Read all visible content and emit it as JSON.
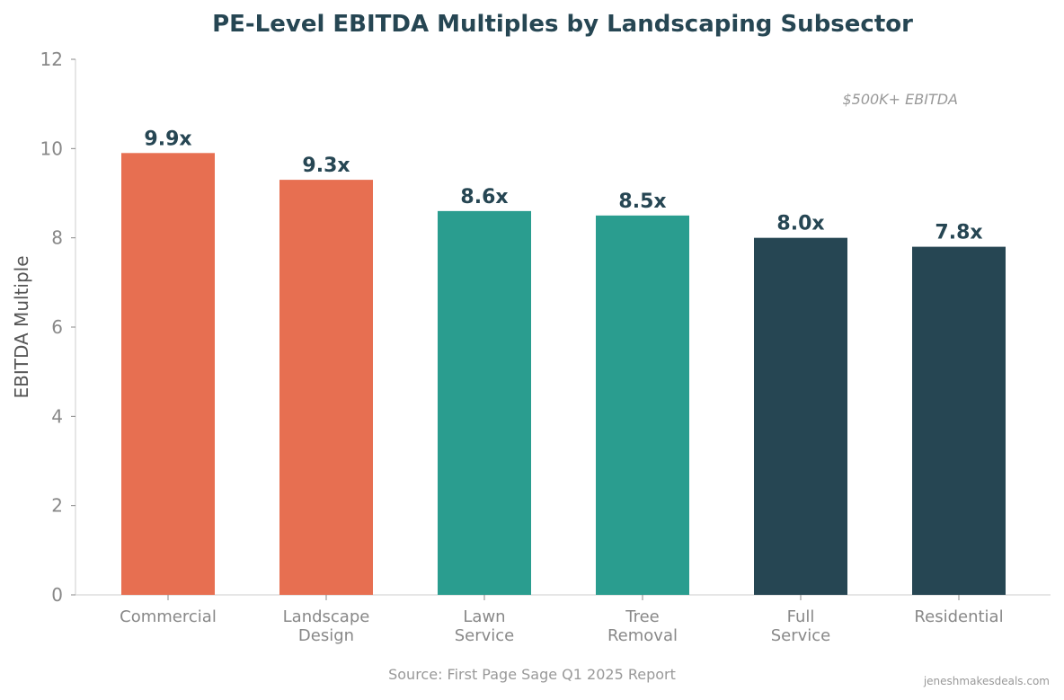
{
  "chart_data": {
    "type": "bar",
    "title": "PE-Level EBITDA Multiples by Landscaping Subsector",
    "ylabel": "EBITDA Multiple",
    "xlabel": "",
    "ylim": [
      0,
      12
    ],
    "yticks": [
      0,
      2,
      4,
      6,
      8,
      10,
      12
    ],
    "grid": false,
    "categories": [
      [
        "Commercial"
      ],
      [
        "Landscape",
        "Design"
      ],
      [
        "Lawn",
        "Service"
      ],
      [
        "Tree",
        "Removal"
      ],
      [
        "Full",
        "Service"
      ],
      [
        "Residential"
      ]
    ],
    "values": [
      9.9,
      9.3,
      8.6,
      8.5,
      8.0,
      7.8
    ],
    "data_labels": [
      "9.9x",
      "9.3x",
      "8.6x",
      "8.5x",
      "8.0x",
      "7.8x"
    ],
    "bar_colors": [
      "#E76F51",
      "#E76F51",
      "#2A9D8F",
      "#2A9D8F",
      "#264653",
      "#264653"
    ],
    "annotation": "$500K+ EBITDA",
    "source": "Source: First Page Sage Q1 2025 Report",
    "watermark": "jeneshmakesdeals.com"
  }
}
